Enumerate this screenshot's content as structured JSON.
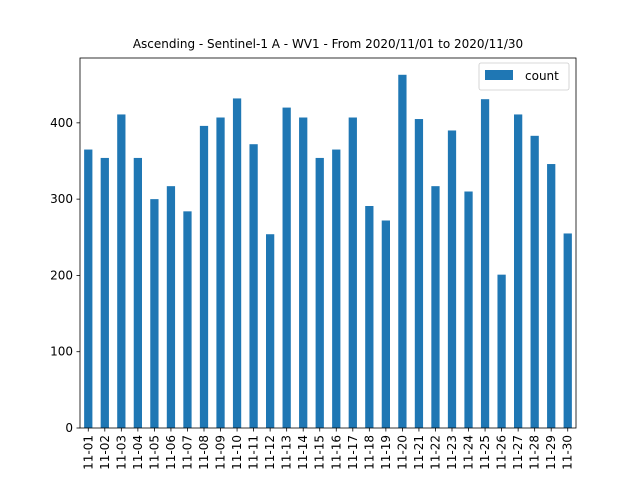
{
  "chart_data": {
    "type": "bar",
    "title": "Ascending - Sentinel-1 A - WV1 - From 2020/11/01 to 2020/11/30",
    "xlabel": "",
    "ylabel": "",
    "categories": [
      "11-01",
      "11-02",
      "11-03",
      "11-04",
      "11-05",
      "11-06",
      "11-07",
      "11-08",
      "11-09",
      "11-10",
      "11-11",
      "11-12",
      "11-13",
      "11-14",
      "11-15",
      "11-16",
      "11-17",
      "11-18",
      "11-19",
      "11-20",
      "11-21",
      "11-22",
      "11-23",
      "11-24",
      "11-25",
      "11-26",
      "11-27",
      "11-28",
      "11-29",
      "11-30"
    ],
    "series": [
      {
        "name": "count",
        "color": "#1f77b4",
        "values": [
          365,
          354,
          411,
          354,
          300,
          317,
          284,
          396,
          407,
          432,
          372,
          254,
          420,
          407,
          354,
          365,
          407,
          291,
          272,
          463,
          405,
          317,
          390,
          310,
          431,
          201,
          411,
          383,
          346,
          255
        ]
      }
    ],
    "ylim": [
      0,
      485
    ],
    "yticks": [
      0,
      100,
      200,
      300,
      400
    ],
    "grid": false,
    "legend_position": "top-right"
  }
}
